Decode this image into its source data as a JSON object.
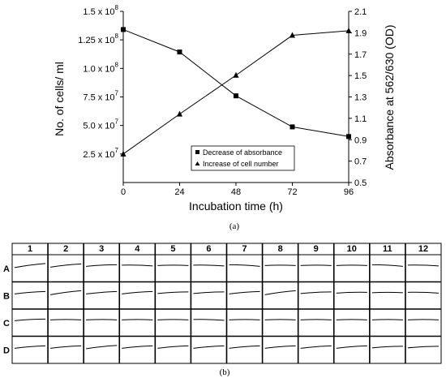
{
  "chart_data": [
    {
      "type": "line",
      "panel_label": "(a)",
      "x": [
        0,
        24,
        48,
        72,
        96
      ],
      "xlabel": "Incubation time (h)",
      "xlim": [
        0,
        96
      ],
      "x_ticks": [
        "0",
        "24",
        "48",
        "72",
        "96"
      ],
      "ylabel_left": "No. of cells/ ml",
      "ylabel_right": "Absorbance at 562/630 (OD)",
      "ylim_left": [
        0,
        150000000
      ],
      "ylim_right": [
        0.5,
        2.1
      ],
      "y_ticks_left": [
        {
          "v": 25000000,
          "mant": "2.5 x 10",
          "exp": "7"
        },
        {
          "v": 50000000,
          "mant": "5.0 x 10",
          "exp": "7"
        },
        {
          "v": 75000000,
          "mant": "7.5 x 10",
          "exp": "7"
        },
        {
          "v": 100000000,
          "mant": "1.0 x 10",
          "exp": "8"
        },
        {
          "v": 125000000,
          "mant": "1.25 x 10",
          "exp": "8"
        },
        {
          "v": 150000000,
          "mant": "1.5 x 10",
          "exp": "8"
        }
      ],
      "y_ticks_right": [
        "0.5",
        "0.7",
        "0.9",
        "1.1",
        "1.3",
        "1.5",
        "1.7",
        "1.9",
        "2.1"
      ],
      "series": [
        {
          "name": "Decrease of absorbance",
          "axis": "right",
          "marker": "square",
          "values": [
            1.93,
            1.72,
            1.31,
            1.02,
            0.93
          ]
        },
        {
          "name": "Increase of cell number",
          "axis": "left",
          "marker": "triangle",
          "values": [
            25000000,
            60000000,
            94000000,
            129000000,
            133000000
          ]
        }
      ],
      "legend_position": "lower-right",
      "grid": false
    },
    {
      "type": "table",
      "panel_label": "(b)",
      "columns": [
        "1",
        "2",
        "3",
        "4",
        "5",
        "6",
        "7",
        "8",
        "9",
        "10",
        "11",
        "12"
      ],
      "rows": [
        "A",
        "B",
        "C",
        "D"
      ],
      "trace_slopes": [
        [
          -5,
          -4,
          -2,
          1,
          0,
          1,
          2,
          0,
          0,
          0,
          2,
          1
        ],
        [
          -3,
          -5,
          -3,
          -3,
          -2,
          -2,
          -3,
          -5,
          -2,
          -1,
          0,
          1
        ],
        [
          -2,
          0,
          0,
          0,
          0,
          1,
          0,
          0,
          0,
          0,
          0,
          0
        ],
        [
          -3,
          -3,
          -4,
          -3,
          -3,
          -3,
          -3,
          -3,
          -3,
          -3,
          -2,
          -2
        ]
      ]
    }
  ]
}
